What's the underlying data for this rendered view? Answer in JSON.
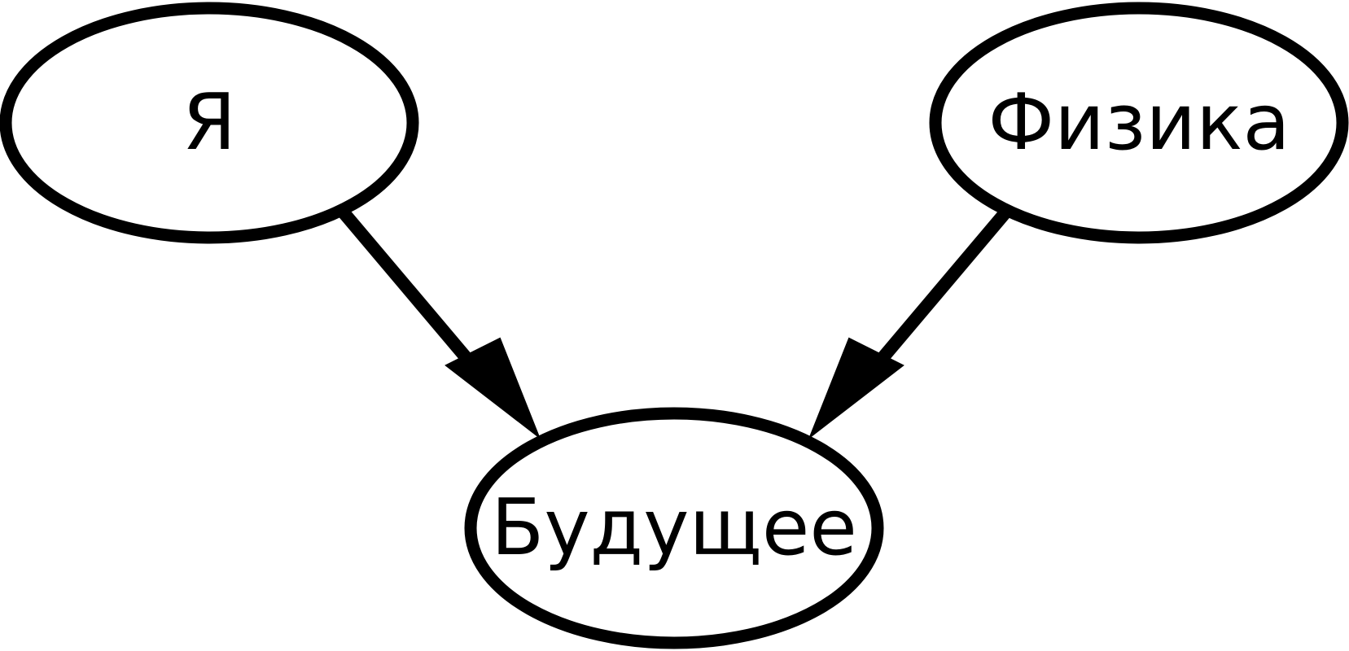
{
  "graph": {
    "nodes": [
      {
        "id": "me",
        "label": "Я"
      },
      {
        "id": "physics",
        "label": "Физика"
      },
      {
        "id": "future",
        "label": "Будущее"
      }
    ],
    "edges": [
      {
        "from": "me",
        "to": "future"
      },
      {
        "from": "physics",
        "to": "future"
      }
    ],
    "colors": {
      "stroke": "#000000",
      "fill": "#ffffff",
      "text": "#000000"
    }
  }
}
